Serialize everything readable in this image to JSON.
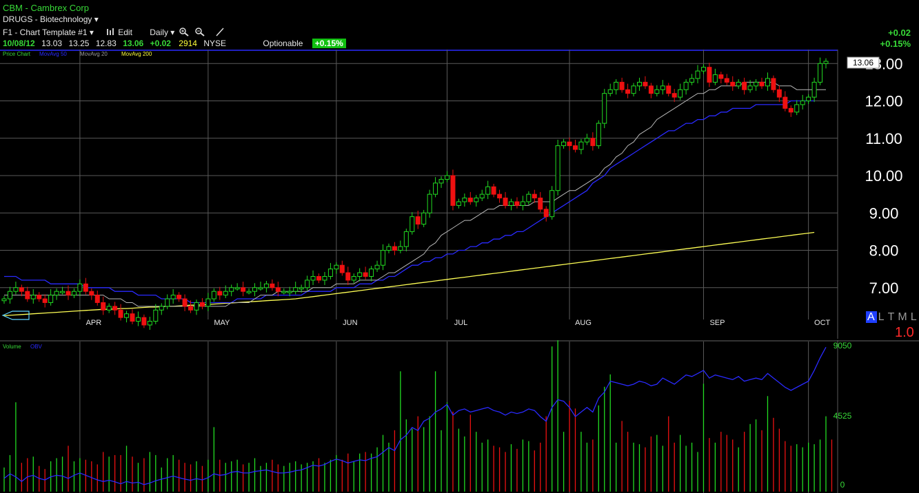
{
  "header": {
    "symbol_name": "CBM - Cambrex Corp",
    "sector": "DRUGS - Biotechnology",
    "template": "F1 - Chart Template #1",
    "edit_label": "Edit",
    "period_label": "Daily",
    "quote": {
      "date": "10/08/12",
      "open": "13.03",
      "high": "13.25",
      "low": "12.83",
      "close": "13.06",
      "change": "+0.02",
      "volume": "2914",
      "exchange": "NYSE",
      "optionable": "Optionable",
      "pct_change": "+0.15%"
    },
    "right_change": "+0.02",
    "right_pct": "+0.15%"
  },
  "price_legend": {
    "label": "Price Chart",
    "ma50": "MovAvg 50",
    "ma20": "MovAvg 20",
    "ma200": "MovAvg 200"
  },
  "volume_legend": {
    "label": "Volume",
    "obv": "OBV"
  },
  "price_tag": "13.06",
  "mode_buttons": [
    "A",
    "L",
    "T",
    "M",
    "L"
  ],
  "scale_factor": "1.0",
  "colors": {
    "up": "#22dd22",
    "down": "#ee1111",
    "ma20": "#b8b8b8",
    "ma50": "#2a2aff",
    "ma200": "#ffff55",
    "grid": "#5a5a5a"
  },
  "chart_data": [
    {
      "type": "candlestick",
      "title": "",
      "months": [
        "APR",
        "MAY",
        "JUN",
        "JUL",
        "AUG",
        "SEP",
        "OCT"
      ],
      "y_ticks": [
        "7.00",
        "8.00",
        "9.00",
        "10.00",
        "11.00",
        "12.00",
        "13.00"
      ],
      "ylim": [
        6.0,
        13.3
      ],
      "close": [
        6.7,
        6.9,
        7.0,
        6.9,
        6.7,
        6.8,
        6.7,
        6.6,
        6.8,
        6.9,
        6.9,
        6.8,
        6.9,
        7.1,
        6.9,
        6.8,
        6.6,
        6.4,
        6.5,
        6.4,
        6.2,
        6.3,
        6.1,
        6.2,
        6.0,
        6.1,
        6.4,
        6.5,
        6.7,
        6.8,
        6.7,
        6.5,
        6.4,
        6.6,
        6.5,
        6.7,
        6.9,
        6.8,
        6.9,
        7.0,
        7.0,
        6.9,
        6.9,
        7.0,
        7.0,
        7.1,
        7.0,
        6.9,
        6.9,
        6.9,
        7.0,
        7.0,
        7.2,
        7.3,
        7.2,
        7.3,
        7.5,
        7.6,
        7.4,
        7.2,
        7.3,
        7.4,
        7.3,
        7.5,
        7.6,
        8.0,
        8.1,
        8.0,
        8.1,
        8.5,
        8.9,
        8.7,
        9.0,
        9.5,
        9.8,
        9.9,
        10.0,
        9.2,
        9.3,
        9.4,
        9.3,
        9.4,
        9.5,
        9.7,
        9.5,
        9.4,
        9.2,
        9.3,
        9.2,
        9.3,
        9.5,
        9.4,
        9.1,
        8.9,
        9.6,
        10.8,
        10.9,
        10.8,
        10.7,
        10.9,
        11.0,
        10.8,
        11.4,
        12.2,
        12.3,
        12.5,
        12.3,
        12.2,
        12.4,
        12.5,
        12.4,
        12.2,
        12.3,
        12.4,
        12.2,
        12.1,
        12.3,
        12.5,
        12.6,
        12.8,
        12.9,
        12.5,
        12.7,
        12.6,
        12.5,
        12.4,
        12.5,
        12.3,
        12.4,
        12.5,
        12.4,
        12.6,
        12.3,
        12.1,
        11.8,
        11.7,
        11.9,
        12.0,
        12.1,
        12.5,
        13.0,
        13.06
      ],
      "ma20": [
        6.8,
        6.8,
        6.8,
        6.8,
        6.8,
        6.8,
        6.8,
        6.8,
        6.8,
        6.8,
        6.8,
        6.8,
        6.8,
        6.8,
        6.8,
        6.8,
        6.8,
        6.8,
        6.7,
        6.7,
        6.7,
        6.6,
        6.6,
        6.5,
        6.5,
        6.5,
        6.5,
        6.5,
        6.5,
        6.5,
        6.5,
        6.5,
        6.5,
        6.5,
        6.5,
        6.5,
        6.5,
        6.5,
        6.5,
        6.6,
        6.6,
        6.6,
        6.6,
        6.7,
        6.8,
        6.8,
        6.8,
        6.9,
        6.9,
        6.9,
        6.9,
        6.9,
        6.9,
        7.0,
        7.0,
        7.0,
        7.0,
        7.1,
        7.1,
        7.1,
        7.1,
        7.2,
        7.2,
        7.2,
        7.2,
        7.3,
        7.4,
        7.4,
        7.5,
        7.6,
        7.7,
        7.8,
        7.9,
        8.1,
        8.2,
        8.4,
        8.5,
        8.6,
        8.7,
        8.8,
        8.8,
        8.9,
        9.0,
        9.1,
        9.1,
        9.2,
        9.2,
        9.2,
        9.2,
        9.2,
        9.2,
        9.3,
        9.3,
        9.3,
        9.3,
        9.4,
        9.5,
        9.6,
        9.6,
        9.7,
        9.8,
        9.9,
        10.0,
        10.2,
        10.3,
        10.5,
        10.6,
        10.8,
        10.9,
        11.1,
        11.2,
        11.3,
        11.5,
        11.6,
        11.7,
        11.8,
        11.9,
        12.0,
        12.1,
        12.2,
        12.2,
        12.3,
        12.3,
        12.4,
        12.4,
        12.4,
        12.4,
        12.5,
        12.5,
        12.5,
        12.5,
        12.5,
        12.5,
        12.4,
        12.4,
        12.4,
        12.3,
        12.3,
        12.3,
        12.3,
        12.3,
        12.3
      ],
      "ma50": [
        7.3,
        7.3,
        7.3,
        7.2,
        7.2,
        7.2,
        7.2,
        7.2,
        7.1,
        7.1,
        7.1,
        7.1,
        7.1,
        7.1,
        7.0,
        7.0,
        7.0,
        7.0,
        7.0,
        6.9,
        6.9,
        6.9,
        6.9,
        6.8,
        6.8,
        6.8,
        6.8,
        6.7,
        6.7,
        6.7,
        6.7,
        6.7,
        6.6,
        6.6,
        6.6,
        6.6,
        6.6,
        6.6,
        6.6,
        6.6,
        6.7,
        6.7,
        6.7,
        6.7,
        6.7,
        6.8,
        6.8,
        6.8,
        6.8,
        6.8,
        6.8,
        6.8,
        6.9,
        6.9,
        6.9,
        6.9,
        6.9,
        7.0,
        7.0,
        7.0,
        7.0,
        7.1,
        7.1,
        7.1,
        7.2,
        7.2,
        7.3,
        7.3,
        7.4,
        7.5,
        7.6,
        7.6,
        7.7,
        7.7,
        7.8,
        7.8,
        7.9,
        7.9,
        8.0,
        8.0,
        8.1,
        8.1,
        8.2,
        8.2,
        8.3,
        8.3,
        8.4,
        8.4,
        8.5,
        8.5,
        8.6,
        8.7,
        8.8,
        8.9,
        9.0,
        9.1,
        9.2,
        9.3,
        9.4,
        9.5,
        9.6,
        9.8,
        9.9,
        10.0,
        10.2,
        10.3,
        10.4,
        10.5,
        10.6,
        10.7,
        10.8,
        10.9,
        11.0,
        11.1,
        11.2,
        11.2,
        11.3,
        11.4,
        11.4,
        11.5,
        11.5,
        11.6,
        11.6,
        11.7,
        11.7,
        11.8,
        11.8,
        11.8,
        11.8,
        11.9,
        11.9,
        11.9,
        11.9,
        11.9,
        11.9,
        12.0,
        12.0,
        12.0,
        12.0,
        12.0
      ],
      "ma200": [
        6.25,
        6.26,
        6.27,
        6.28,
        6.29,
        6.3,
        6.31,
        6.32,
        6.33,
        6.34,
        6.35,
        6.36,
        6.37,
        6.38,
        6.39,
        6.4,
        6.41,
        6.42,
        6.42,
        6.43,
        6.44,
        6.44,
        6.45,
        6.46,
        6.47,
        6.48,
        6.48,
        6.49,
        6.5,
        6.5,
        6.51,
        6.52,
        6.53,
        6.53,
        6.54,
        6.55,
        6.56,
        6.57,
        6.58,
        6.59,
        6.6,
        6.61,
        6.62,
        6.63,
        6.64,
        6.65,
        6.66,
        6.67,
        6.68,
        6.69,
        6.7,
        6.72,
        6.74,
        6.76,
        6.78,
        6.8,
        6.82,
        6.84,
        6.86,
        6.88,
        6.9,
        6.92,
        6.94,
        6.96,
        6.98,
        7.0,
        7.02,
        7.04,
        7.06,
        7.08,
        7.1,
        7.12,
        7.14,
        7.16,
        7.18,
        7.2,
        7.22,
        7.24,
        7.26,
        7.28,
        7.3,
        7.32,
        7.34,
        7.36,
        7.38,
        7.4,
        7.42,
        7.44,
        7.46,
        7.48,
        7.5,
        7.52,
        7.54,
        7.56,
        7.58,
        7.6,
        7.62,
        7.64,
        7.66,
        7.68,
        7.7,
        7.72,
        7.74,
        7.76,
        7.78,
        7.8,
        7.82,
        7.84,
        7.86,
        7.88,
        7.9,
        7.92,
        7.94,
        7.96,
        7.98,
        8.0,
        8.02,
        8.04,
        8.06,
        8.08,
        8.1,
        8.12,
        8.14,
        8.16,
        8.18,
        8.2,
        8.22,
        8.24,
        8.26,
        8.28,
        8.3,
        8.32,
        8.34,
        8.36,
        8.38,
        8.4,
        8.42,
        8.44,
        8.46,
        8.48
      ]
    },
    {
      "type": "bar",
      "title": "",
      "y_ticks": [
        "0",
        "4525",
        "9050"
      ],
      "ylim": [
        0,
        9050
      ],
      "volume": [
        1200,
        2000,
        5400,
        1500,
        1800,
        1900,
        1300,
        1100,
        1600,
        1800,
        1900,
        2600,
        1600,
        1800,
        1700,
        1600,
        1400,
        2200,
        1900,
        2000,
        2000,
        2600,
        1900,
        1500,
        1800,
        2200,
        2000,
        1200,
        1800,
        2000,
        1700,
        1500,
        1400,
        1600,
        1300,
        1700,
        3800,
        1700,
        1500,
        1600,
        1700,
        1400,
        1500,
        1800,
        1300,
        1500,
        1700,
        1400,
        1300,
        1500,
        1600,
        1400,
        1500,
        1600,
        1800,
        1500,
        1700,
        2000,
        1700,
        2100,
        1600,
        2100,
        2200,
        2100,
        2500,
        3300,
        2800,
        3600,
        7400,
        4300,
        3700,
        4500,
        3800,
        4500,
        7400,
        3600,
        5400,
        4800,
        3700,
        3200,
        4600,
        3500,
        2800,
        3000,
        2600,
        2500,
        2200,
        2700,
        2400,
        3000,
        2900,
        2300,
        2800,
        4500,
        9000,
        9400,
        3500,
        5500,
        5000,
        3500,
        2800,
        3000,
        5200,
        6400,
        7200,
        2800,
        4200,
        3500,
        2800,
        2700,
        2500,
        3200,
        3300,
        2600,
        4500,
        2800,
        3300,
        2600,
        2800,
        2200,
        6600,
        3100,
        2800,
        3500,
        3300,
        3000,
        2500,
        3500,
        4000,
        4300,
        3600,
        5800,
        4400,
        3700,
        2900,
        2600,
        2700,
        2500,
        2800,
        2700,
        3000,
        4500,
        3000
      ],
      "obv": [
        500,
        800,
        600,
        300,
        600,
        700,
        500,
        400,
        600,
        700,
        650,
        500,
        700,
        850,
        700,
        550,
        400,
        300,
        380,
        280,
        150,
        300,
        200,
        250,
        100,
        200,
        350,
        450,
        550,
        650,
        550,
        450,
        380,
        480,
        400,
        550,
        800,
        700,
        750,
        900,
        950,
        850,
        850,
        950,
        1000,
        1050,
        950,
        850,
        850,
        900,
        1000,
        1050,
        1200,
        1350,
        1300,
        1400,
        1600,
        1750,
        1650,
        1500,
        1600,
        1700,
        1650,
        1800,
        1900,
        2200,
        2500,
        2300,
        3000,
        3300,
        3800,
        3600,
        4200,
        4400,
        4800,
        5000,
        5300,
        4600,
        4900,
        5000,
        4800,
        4900,
        5000,
        5100,
        4900,
        4800,
        4600,
        4800,
        4700,
        4800,
        5000,
        4900,
        4500,
        4200,
        5100,
        5600,
        5500,
        5100,
        4500,
        4800,
        5100,
        4800,
        5700,
        6100,
        6800,
        6700,
        6600,
        6500,
        6600,
        6800,
        6700,
        6500,
        6600,
        7000,
        6800,
        6600,
        6900,
        7200,
        7100,
        7300,
        7500,
        7000,
        7200,
        7100,
        7000,
        6900,
        7100,
        6800,
        6900,
        7000,
        6900,
        7300,
        7000,
        6700,
        6400,
        6200,
        6400,
        6600,
        6800,
        7500,
        8300,
        9000
      ]
    }
  ]
}
